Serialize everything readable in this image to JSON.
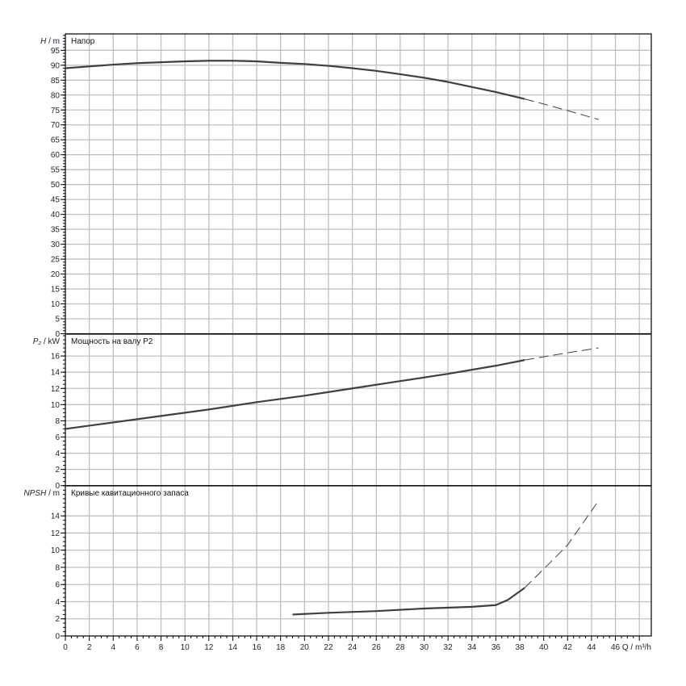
{
  "chart_data": [
    {
      "type": "line",
      "title": "Напор",
      "ylabel_symbol": "H",
      "ylabel_unit": " / m",
      "ylim": [
        0,
        100.5
      ],
      "yticks": [
        0,
        5,
        10,
        15,
        20,
        25,
        30,
        35,
        40,
        45,
        50,
        55,
        60,
        65,
        70,
        75,
        80,
        85,
        90,
        95
      ],
      "grid": true,
      "series": [
        {
          "style": "solid",
          "x": [
            0,
            2,
            4,
            6,
            8,
            10,
            12,
            14,
            16,
            18,
            20,
            22,
            24,
            26,
            28,
            30,
            32,
            34,
            36,
            38.4
          ],
          "y": [
            89,
            89.6,
            90.2,
            90.7,
            91,
            91.3,
            91.5,
            91.5,
            91.3,
            90.8,
            90.4,
            89.8,
            89,
            88.1,
            87,
            85.8,
            84.4,
            82.7,
            81,
            78.7
          ]
        },
        {
          "style": "dashed",
          "x": [
            38.4,
            40,
            42,
            44.6
          ],
          "y": [
            78.7,
            77,
            74.8,
            71.8
          ]
        }
      ]
    },
    {
      "type": "line",
      "title": "Мощность на валу P2",
      "ylabel_symbol": "P₂",
      "ylabel_unit": " / kW",
      "ylim": [
        0,
        18.7
      ],
      "yticks": [
        0,
        2,
        4,
        6,
        8,
        10,
        12,
        14,
        16
      ],
      "grid": true,
      "series": [
        {
          "style": "solid",
          "x": [
            0,
            4,
            8,
            12,
            16,
            20,
            24,
            28,
            32,
            36,
            38.4
          ],
          "y": [
            7.0,
            7.8,
            8.6,
            9.4,
            10.3,
            11.1,
            12.0,
            12.9,
            13.8,
            14.8,
            15.5
          ]
        },
        {
          "style": "dashed",
          "x": [
            38.4,
            40,
            42,
            44.6
          ],
          "y": [
            15.5,
            15.9,
            16.4,
            17.0
          ]
        }
      ]
    },
    {
      "type": "line",
      "title": "Кривые кавитационного запаса",
      "ylabel_symbol": "NPSH",
      "ylabel_unit": " / m",
      "ylim": [
        0,
        17.5
      ],
      "yticks": [
        0,
        2,
        4,
        6,
        8,
        10,
        12,
        14
      ],
      "grid": true,
      "series": [
        {
          "style": "solid",
          "x": [
            19,
            22,
            26,
            30,
            34,
            36,
            37,
            38.4
          ],
          "y": [
            2.5,
            2.7,
            2.9,
            3.2,
            3.4,
            3.6,
            4.2,
            5.6
          ]
        },
        {
          "style": "dashed",
          "x": [
            38.4,
            40,
            42,
            44.6
          ],
          "y": [
            5.6,
            7.8,
            10.6,
            15.8
          ]
        }
      ]
    }
  ],
  "x_axis": {
    "label": "Q / m³/h",
    "xlim": [
      0,
      49
    ],
    "ticks": [
      0,
      2,
      4,
      6,
      8,
      10,
      12,
      14,
      16,
      18,
      20,
      22,
      24,
      26,
      28,
      30,
      32,
      34,
      36,
      38,
      40,
      42,
      44,
      46
    ]
  },
  "colors": {
    "curve": "#3a4048",
    "grid": "#c0c0c0",
    "axis": "#000000"
  }
}
